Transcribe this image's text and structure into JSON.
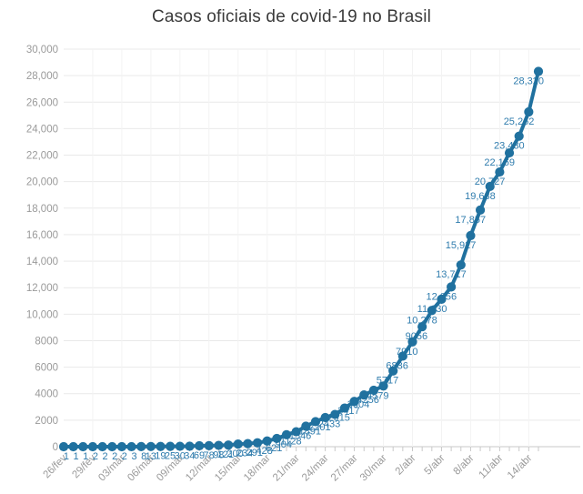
{
  "chart_data": {
    "type": "line",
    "title": "Casos oficiais de covid-19 no Brasil",
    "xlabel": "",
    "ylabel": "",
    "ylim": [
      0,
      30000
    ],
    "grid": true,
    "legend": "none",
    "x_tick_labels": [
      "26/fev",
      "29/fev",
      "03/mar",
      "06/mar",
      "09/mar",
      "12/mar",
      "15/mar",
      "18/mar",
      "21/mar",
      "24/mar",
      "27/mar",
      "30/mar",
      "2/abr",
      "5/abr",
      "8/abr",
      "11/abr",
      "14/abr"
    ],
    "x_points_per_major_tick": 3,
    "y_tick_labels": [
      "0",
      "2000",
      "4000",
      "6000",
      "8000",
      "10,000",
      "12,000",
      "14,000",
      "16,000",
      "18,000",
      "20,000",
      "22,000",
      "24,000",
      "26,000",
      "28,000",
      "30,000"
    ],
    "y_tick_step": 2000,
    "values": [
      1,
      1,
      1,
      2,
      2,
      2,
      2,
      3,
      8,
      13,
      19,
      25,
      30,
      34,
      69,
      78,
      98,
      121,
      200,
      234,
      291,
      428,
      621,
      904,
      1128,
      1546,
      1891,
      2201,
      2433,
      2915,
      3417,
      3904,
      4256,
      4579,
      5717,
      6836,
      7910,
      9056,
      10278,
      11130,
      12056,
      13717,
      15927,
      17857,
      19638,
      20727,
      22169,
      23430,
      25262,
      28320
    ],
    "point_labels": [
      "1",
      "1",
      "1",
      "2",
      "2",
      "2",
      "2",
      "3",
      "8",
      "13",
      "19",
      "25",
      "30",
      "34",
      "69",
      "78",
      "98",
      "121",
      "200",
      "234",
      "291",
      "428",
      "621",
      "904",
      "1128",
      "1546",
      "1891",
      "2201",
      "2433",
      "2915",
      "3417",
      "3904",
      "4256",
      "4579",
      "5717",
      "6836",
      "7910",
      "9056",
      "10,278",
      "11,130",
      "12,056",
      "13,717",
      "15,927",
      "17,857",
      "19,638",
      "20,727",
      "22,169",
      "23,430",
      "25,262",
      "28,320"
    ],
    "colors": {
      "line": "#20719f",
      "marker": "#20719f",
      "point_label": "#2f7cad",
      "axis_text": "#9a9a9a",
      "title": "#3a3a3a",
      "gridline": "#e9e9e9",
      "vertical_gridline": "#f3f3f3",
      "axis_line": "#c9c9c9",
      "background": "#ffffff"
    }
  }
}
